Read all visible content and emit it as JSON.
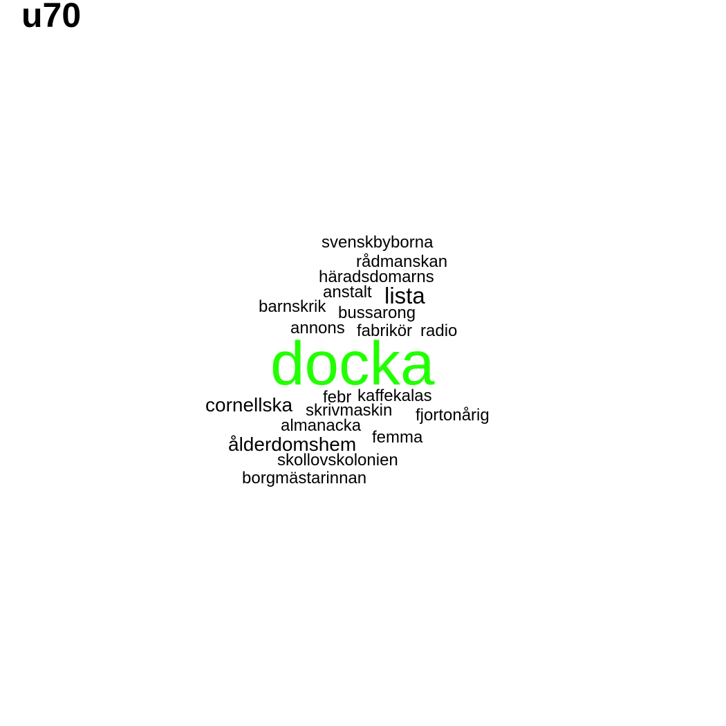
{
  "title": "u70",
  "colors": {
    "highlight": "#22ff00",
    "default": "#000000"
  },
  "words": [
    {
      "text": "svenskbyborna"
    },
    {
      "text": "rådmanskan"
    },
    {
      "text": "häradsdomarns"
    },
    {
      "text": "anstalt"
    },
    {
      "text": "lista"
    },
    {
      "text": "barnskrik"
    },
    {
      "text": "bussarong"
    },
    {
      "text": "annons"
    },
    {
      "text": "fabrikör"
    },
    {
      "text": "radio"
    },
    {
      "text": "docka"
    },
    {
      "text": "febr"
    },
    {
      "text": "kaffekalas"
    },
    {
      "text": "cornellska"
    },
    {
      "text": "skrivmaskin"
    },
    {
      "text": "fjortonårig"
    },
    {
      "text": "almanacka"
    },
    {
      "text": "femma"
    },
    {
      "text": "ålderdomshem"
    },
    {
      "text": "skollovskolonien"
    },
    {
      "text": "borgmästarinnan"
    }
  ]
}
